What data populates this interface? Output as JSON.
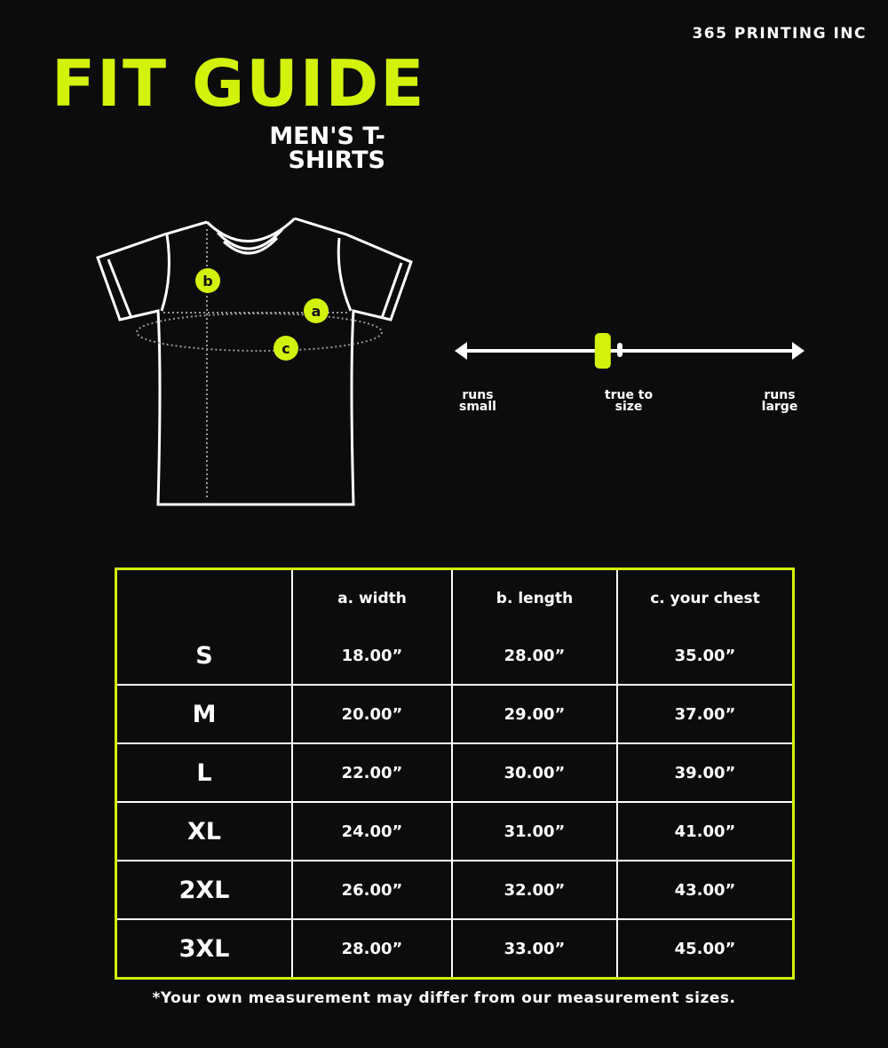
{
  "brand": "365 PRINTING INC",
  "title": "FIT GUIDE",
  "subtitle": "MEN'S T-SHIRTS",
  "accent_color": "#d2f20c",
  "diagram_markers": {
    "width": "a",
    "length": "b",
    "chest": "c"
  },
  "fit_scale": {
    "left": "runs small",
    "center": "true to size",
    "right": "runs large",
    "position": 0.42
  },
  "table": {
    "headers": [
      "",
      "a. width",
      "b. length",
      "c. your chest"
    ],
    "rows": [
      [
        "S",
        "18.00”",
        "28.00”",
        "35.00”"
      ],
      [
        "M",
        "20.00”",
        "29.00”",
        "37.00”"
      ],
      [
        "L",
        "22.00”",
        "30.00”",
        "39.00”"
      ],
      [
        "XL",
        "24.00”",
        "31.00”",
        "41.00”"
      ],
      [
        "2XL",
        "26.00”",
        "32.00”",
        "43.00”"
      ],
      [
        "3XL",
        "28.00”",
        "33.00”",
        "45.00”"
      ]
    ]
  },
  "footnote": "*Your own measurement may differ from our measurement sizes."
}
